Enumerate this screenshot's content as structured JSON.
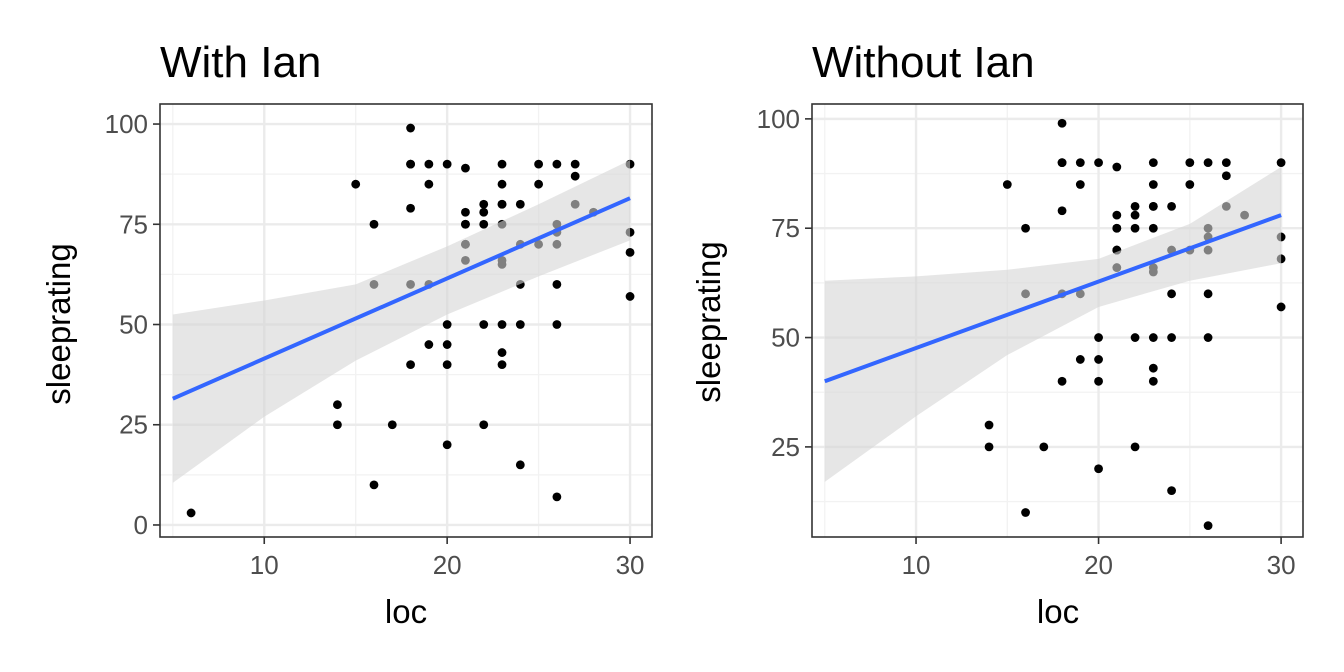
{
  "chart_data": [
    {
      "type": "scatter",
      "title": "With Ian",
      "xlabel": "loc",
      "ylabel": "sleeprating",
      "xlim": [
        4.3,
        31.2
      ],
      "ylim": [
        -3,
        105
      ],
      "xticks": [
        10,
        20,
        30
      ],
      "yticks": [
        0,
        25,
        50,
        75,
        100
      ],
      "grid": true,
      "colors": {
        "points": "#000000",
        "fit_line": "#3366ff",
        "ribbon": "#d6d6d6"
      },
      "points": [
        [
          6,
          3
        ],
        [
          14,
          30
        ],
        [
          14,
          25
        ],
        [
          15,
          85
        ],
        [
          16,
          75
        ],
        [
          16,
          60
        ],
        [
          16,
          10
        ],
        [
          17,
          25
        ],
        [
          18,
          99
        ],
        [
          18,
          90
        ],
        [
          18,
          90
        ],
        [
          18,
          79
        ],
        [
          18,
          60
        ],
        [
          18,
          40
        ],
        [
          19,
          90
        ],
        [
          19,
          85
        ],
        [
          19,
          60
        ],
        [
          19,
          45
        ],
        [
          20,
          90
        ],
        [
          20,
          50
        ],
        [
          20,
          45
        ],
        [
          20,
          40
        ],
        [
          20,
          20
        ],
        [
          21,
          89
        ],
        [
          21,
          78
        ],
        [
          21,
          75
        ],
        [
          21,
          75
        ],
        [
          21,
          70
        ],
        [
          21,
          70
        ],
        [
          21,
          66
        ],
        [
          22,
          80
        ],
        [
          22,
          78
        ],
        [
          22,
          75
        ],
        [
          22,
          50
        ],
        [
          22,
          25
        ],
        [
          23,
          90
        ],
        [
          23,
          85
        ],
        [
          23,
          80
        ],
        [
          23,
          80
        ],
        [
          23,
          75
        ],
        [
          23,
          66
        ],
        [
          23,
          65
        ],
        [
          23,
          50
        ],
        [
          23,
          43
        ],
        [
          23,
          40
        ],
        [
          24,
          80
        ],
        [
          24,
          70
        ],
        [
          24,
          60
        ],
        [
          24,
          50
        ],
        [
          24,
          15
        ],
        [
          25,
          90
        ],
        [
          25,
          85
        ],
        [
          25,
          70
        ],
        [
          26,
          90
        ],
        [
          26,
          75
        ],
        [
          26,
          73
        ],
        [
          26,
          70
        ],
        [
          26,
          60
        ],
        [
          26,
          50
        ],
        [
          26,
          7
        ],
        [
          27,
          90
        ],
        [
          27,
          87
        ],
        [
          27,
          80
        ],
        [
          28,
          78
        ],
        [
          30,
          90
        ],
        [
          30,
          73
        ],
        [
          30,
          68
        ],
        [
          30,
          57
        ]
      ],
      "fit": {
        "x": [
          5,
          30
        ],
        "y": [
          31.5,
          81.5
        ]
      },
      "ribbon": {
        "x": [
          5,
          10,
          15,
          20,
          25,
          30
        ],
        "lower": [
          10.5,
          27,
          41,
          52.5,
          62,
          71
        ],
        "upper": [
          52.5,
          56,
          60,
          69.5,
          80,
          91
        ]
      }
    },
    {
      "type": "scatter",
      "title": "Without Ian",
      "xlabel": "loc",
      "ylabel": "sleeprating",
      "xlim": [
        4.3,
        31.2
      ],
      "ylim": [
        4.4,
        103.4
      ],
      "xticks": [
        10,
        20,
        30
      ],
      "yticks": [
        25,
        50,
        75,
        100
      ],
      "grid": true,
      "colors": {
        "points": "#000000",
        "fit_line": "#3366ff",
        "ribbon": "#d6d6d6"
      },
      "points": [
        [
          14,
          30
        ],
        [
          14,
          25
        ],
        [
          15,
          85
        ],
        [
          16,
          75
        ],
        [
          16,
          60
        ],
        [
          16,
          10
        ],
        [
          17,
          25
        ],
        [
          18,
          99
        ],
        [
          18,
          90
        ],
        [
          18,
          90
        ],
        [
          18,
          79
        ],
        [
          18,
          60
        ],
        [
          18,
          40
        ],
        [
          19,
          90
        ],
        [
          19,
          85
        ],
        [
          19,
          60
        ],
        [
          19,
          45
        ],
        [
          20,
          90
        ],
        [
          20,
          50
        ],
        [
          20,
          45
        ],
        [
          20,
          40
        ],
        [
          20,
          20
        ],
        [
          21,
          89
        ],
        [
          21,
          78
        ],
        [
          21,
          75
        ],
        [
          21,
          75
        ],
        [
          21,
          70
        ],
        [
          21,
          70
        ],
        [
          21,
          66
        ],
        [
          22,
          80
        ],
        [
          22,
          78
        ],
        [
          22,
          75
        ],
        [
          22,
          50
        ],
        [
          22,
          25
        ],
        [
          23,
          90
        ],
        [
          23,
          85
        ],
        [
          23,
          80
        ],
        [
          23,
          80
        ],
        [
          23,
          75
        ],
        [
          23,
          66
        ],
        [
          23,
          65
        ],
        [
          23,
          50
        ],
        [
          23,
          43
        ],
        [
          23,
          40
        ],
        [
          24,
          80
        ],
        [
          24,
          70
        ],
        [
          24,
          60
        ],
        [
          24,
          50
        ],
        [
          24,
          15
        ],
        [
          25,
          90
        ],
        [
          25,
          85
        ],
        [
          25,
          70
        ],
        [
          26,
          90
        ],
        [
          26,
          75
        ],
        [
          26,
          73
        ],
        [
          26,
          70
        ],
        [
          26,
          60
        ],
        [
          26,
          50
        ],
        [
          26,
          7
        ],
        [
          27,
          90
        ],
        [
          27,
          87
        ],
        [
          27,
          80
        ],
        [
          28,
          78
        ],
        [
          30,
          90
        ],
        [
          30,
          73
        ],
        [
          30,
          68
        ],
        [
          30,
          57
        ]
      ],
      "fit": {
        "x": [
          5,
          30
        ],
        "y": [
          40,
          78
        ]
      },
      "ribbon": {
        "x": [
          5,
          10,
          15,
          20,
          25,
          30
        ],
        "lower": [
          17,
          32,
          46,
          57,
          63,
          67
        ],
        "upper": [
          63,
          64,
          65.5,
          68,
          76,
          89
        ]
      }
    }
  ]
}
